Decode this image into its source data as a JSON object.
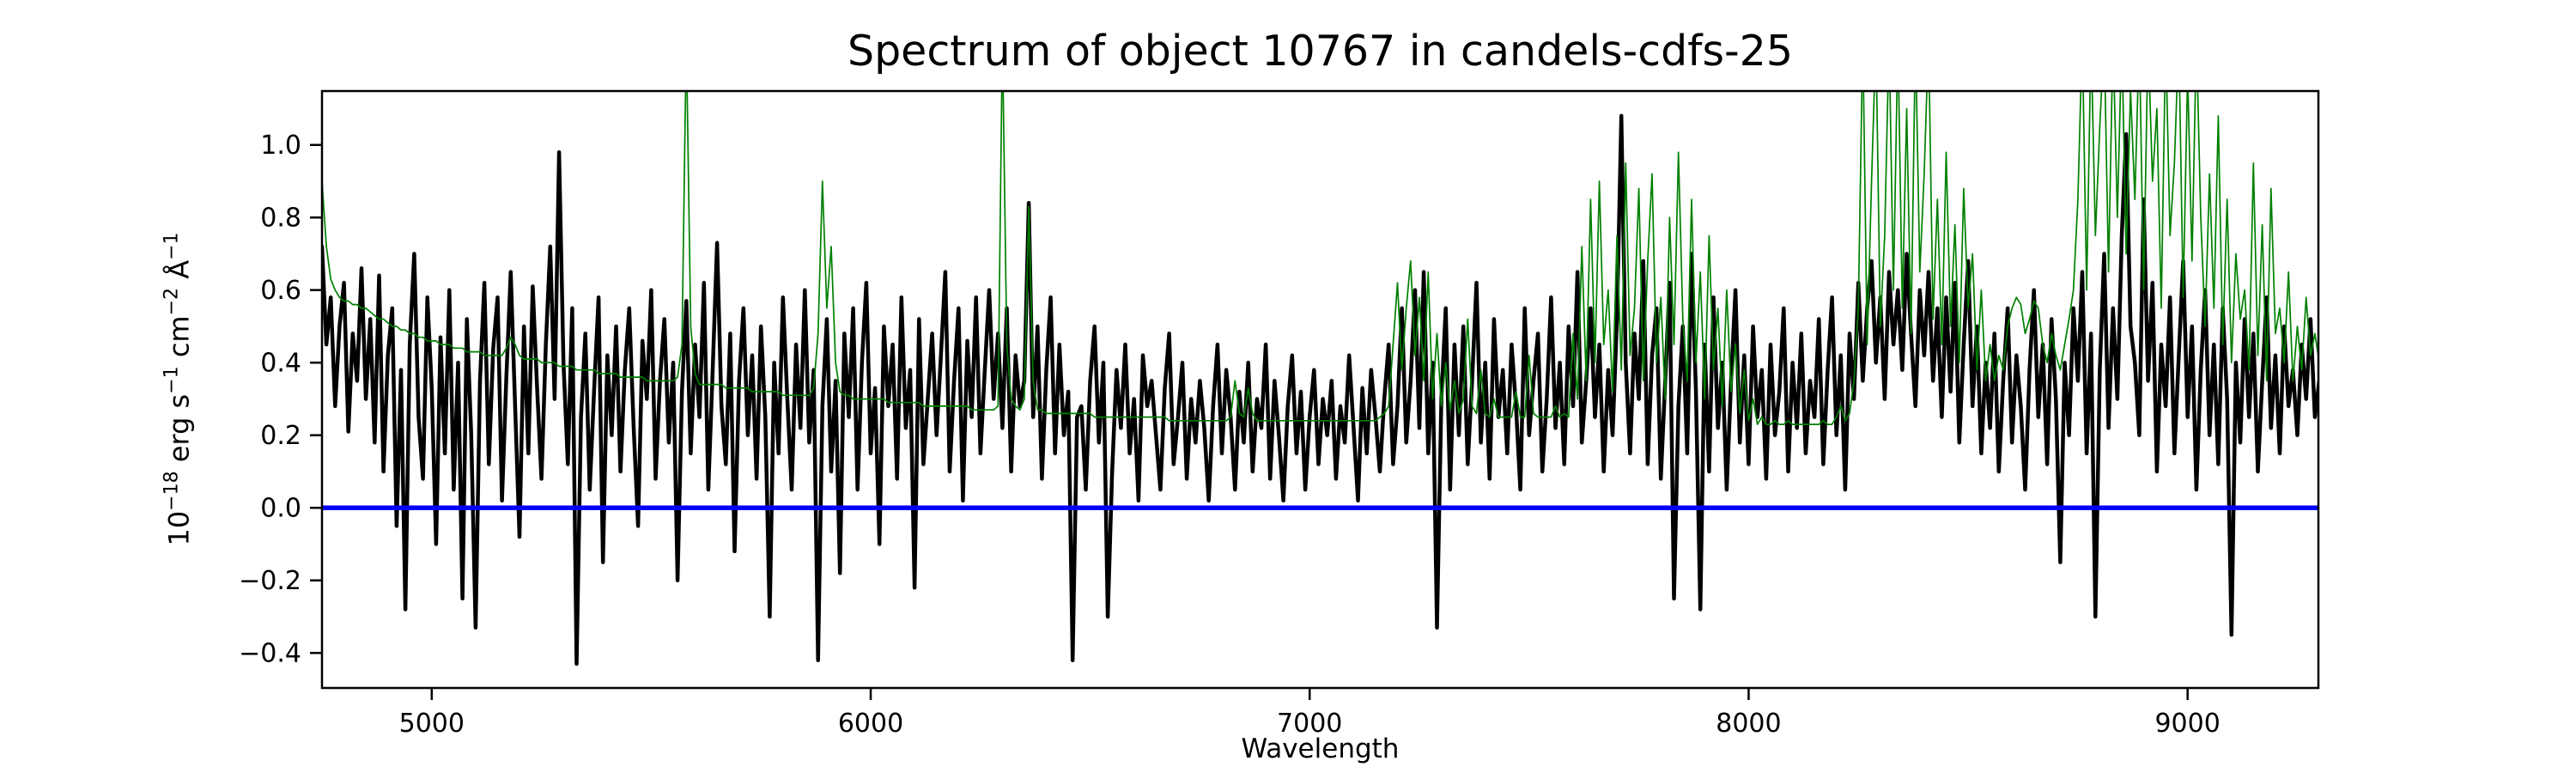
{
  "figure": {
    "title": "Spectrum of object 10767 in candels-cdfs-25",
    "background": "#ffffff"
  },
  "axes": {
    "xlabel": "Wavelength",
    "ylabel_flat": "10^{-18} erg s^{-1} cm^{-2} Å^{-1}",
    "ylabel_parts": [
      {
        "t": "10",
        "sup": false
      },
      {
        "t": "−18",
        "sup": true
      },
      {
        "t": " erg s",
        "sup": false
      },
      {
        "t": "−1",
        "sup": true
      },
      {
        "t": " cm",
        "sup": false
      },
      {
        "t": "−2",
        "sup": true
      },
      {
        "t": " Å",
        "sup": false
      },
      {
        "t": "−1",
        "sup": true
      }
    ],
    "x_ticks": [
      {
        "v": 5000,
        "label": "5000"
      },
      {
        "v": 6000,
        "label": "6000"
      },
      {
        "v": 7000,
        "label": "7000"
      },
      {
        "v": 8000,
        "label": "8000"
      },
      {
        "v": 9000,
        "label": "9000"
      }
    ],
    "y_ticks": [
      {
        "v": 1.0,
        "label": "1.0"
      },
      {
        "v": 0.8,
        "label": "0.8"
      },
      {
        "v": 0.6,
        "label": "0.6"
      },
      {
        "v": 0.4,
        "label": "0.4"
      },
      {
        "v": 0.2,
        "label": "0.2"
      },
      {
        "v": 0.0,
        "label": "0.0"
      },
      {
        "v": -0.2,
        "label": "−0.2"
      },
      {
        "v": -0.4,
        "label": "−0.4"
      }
    ],
    "spine_color": "#000000"
  },
  "chart_data": {
    "type": "line",
    "title": "Spectrum of object 10767 in candels-cdfs-25",
    "xlabel": "Wavelength",
    "ylabel": "10^{-18} erg s^{-1} cm^{-2} Å^{-1}",
    "xlim": [
      4750,
      9298
    ],
    "ylim": [
      -0.4965,
      1.1485
    ],
    "grid": false,
    "legend_position": "none",
    "x_start": 4750,
    "x_step": 10,
    "series": [
      {
        "name": "observed spectrum",
        "color": "#000000",
        "linewidth": 4.5,
        "values": [
          0.72,
          0.45,
          0.58,
          0.28,
          0.5,
          0.62,
          0.21,
          0.48,
          0.35,
          0.66,
          0.3,
          0.52,
          0.18,
          0.64,
          0.1,
          0.42,
          0.55,
          -0.05,
          0.38,
          -0.28,
          0.45,
          0.7,
          0.25,
          0.08,
          0.58,
          0.33,
          -0.1,
          0.47,
          0.15,
          0.6,
          0.05,
          0.4,
          -0.25,
          0.52,
          0.2,
          -0.33,
          0.35,
          0.62,
          0.12,
          0.44,
          0.58,
          0.02,
          0.36,
          0.65,
          0.28,
          -0.08,
          0.5,
          0.15,
          0.61,
          0.33,
          0.08,
          0.45,
          0.72,
          0.3,
          0.98,
          0.4,
          0.12,
          0.55,
          -0.43,
          0.25,
          0.48,
          0.05,
          0.33,
          0.58,
          -0.15,
          0.42,
          0.2,
          0.5,
          0.1,
          0.38,
          0.55,
          0.22,
          -0.05,
          0.46,
          0.3,
          0.6,
          0.08,
          0.35,
          0.52,
          0.18,
          0.4,
          -0.2,
          0.32,
          0.57,
          0.15,
          0.45,
          0.25,
          0.62,
          0.05,
          0.38,
          0.73,
          0.28,
          0.12,
          0.48,
          -0.12,
          0.35,
          0.55,
          0.2,
          0.42,
          0.08,
          0.5,
          0.25,
          -0.3,
          0.4,
          0.15,
          0.58,
          0.3,
          0.05,
          0.45,
          0.22,
          0.6,
          0.18,
          0.38,
          -0.42,
          0.28,
          0.52,
          0.1,
          0.35,
          -0.18,
          0.48,
          0.25,
          0.55,
          0.05,
          0.4,
          0.62,
          0.15,
          0.33,
          -0.1,
          0.5,
          0.28,
          0.45,
          0.08,
          0.58,
          0.22,
          0.38,
          -0.22,
          0.52,
          0.12,
          0.3,
          0.48,
          0.2,
          0.42,
          0.65,
          0.1,
          0.35,
          0.55,
          0.02,
          0.46,
          0.25,
          0.58,
          0.15,
          0.38,
          0.6,
          0.3,
          0.48,
          0.22,
          0.55,
          0.1,
          0.42,
          0.28,
          0.35,
          0.84,
          0.25,
          0.5,
          0.08,
          0.38,
          0.58,
          0.15,
          0.45,
          0.2,
          0.32,
          -0.42,
          0.25,
          0.28,
          0.05,
          0.35,
          0.5,
          0.18,
          0.4,
          -0.3,
          0.1,
          0.38,
          0.22,
          0.45,
          0.15,
          0.3,
          0.02,
          0.42,
          0.28,
          0.35,
          0.2,
          0.05,
          0.33,
          0.48,
          0.12,
          0.25,
          0.4,
          0.08,
          0.3,
          0.18,
          0.35,
          0.22,
          0.02,
          0.28,
          0.45,
          0.15,
          0.38,
          0.25,
          0.05,
          0.32,
          0.18,
          0.4,
          0.1,
          0.3,
          0.22,
          0.45,
          0.08,
          0.35,
          0.2,
          0.02,
          0.28,
          0.42,
          0.15,
          0.32,
          0.05,
          0.25,
          0.38,
          0.12,
          0.3,
          0.2,
          0.35,
          0.08,
          0.28,
          0.18,
          0.42,
          0.22,
          0.02,
          0.33,
          0.15,
          0.38,
          0.25,
          0.1,
          0.3,
          0.45,
          0.12,
          0.28,
          0.55,
          0.18,
          0.35,
          0.6,
          0.22,
          0.65,
          0.15,
          0.4,
          -0.33,
          0.3,
          0.55,
          0.05,
          0.45,
          0.2,
          0.5,
          0.12,
          0.35,
          0.62,
          0.18,
          0.4,
          0.08,
          0.52,
          0.25,
          0.38,
          0.15,
          0.45,
          0.28,
          0.05,
          0.55,
          0.2,
          0.35,
          0.48,
          0.1,
          0.3,
          0.58,
          0.22,
          0.4,
          0.12,
          0.5,
          0.28,
          0.65,
          0.18,
          0.35,
          0.55,
          0.25,
          0.45,
          0.1,
          0.38,
          0.2,
          0.52,
          1.08,
          0.4,
          0.15,
          0.48,
          0.3,
          0.68,
          0.12,
          0.42,
          0.55,
          0.08,
          0.35,
          0.62,
          -0.25,
          0.28,
          0.5,
          0.15,
          0.7,
          0.32,
          -0.28,
          0.45,
          0.1,
          0.58,
          0.22,
          0.4,
          0.05,
          0.35,
          0.6,
          0.18,
          0.42,
          0.12,
          0.5,
          0.25,
          0.38,
          0.08,
          0.45,
          0.2,
          0.32,
          0.55,
          0.1,
          0.4,
          0.22,
          0.48,
          0.15,
          0.35,
          0.25,
          0.52,
          0.12,
          0.38,
          0.58,
          0.2,
          0.42,
          0.05,
          0.48,
          0.3,
          0.62,
          0.35,
          0.55,
          0.68,
          0.4,
          0.58,
          0.3,
          0.65,
          0.45,
          0.6,
          0.38,
          0.7,
          0.48,
          0.28,
          0.6,
          0.42,
          0.65,
          0.35,
          0.55,
          0.25,
          0.58,
          0.32,
          0.62,
          0.18,
          0.45,
          0.68,
          0.28,
          0.5,
          0.15,
          0.4,
          0.22,
          0.48,
          0.1,
          0.35,
          0.55,
          0.18,
          0.42,
          0.28,
          0.05,
          0.38,
          0.6,
          0.25,
          0.45,
          0.12,
          0.52,
          0.3,
          -0.15,
          0.4,
          0.2,
          0.55,
          0.35,
          0.65,
          0.15,
          0.48,
          -0.3,
          0.38,
          0.7,
          0.22,
          0.55,
          0.3,
          0.75,
          1.03,
          0.5,
          0.4,
          0.2,
          0.85,
          0.35,
          0.62,
          0.1,
          0.45,
          0.28,
          0.58,
          0.15,
          0.42,
          0.68,
          0.25,
          0.5,
          0.05,
          0.38,
          0.6,
          0.2,
          0.45,
          0.12,
          0.55,
          0.3,
          -0.35,
          0.4,
          0.18,
          0.52,
          0.25,
          0.48,
          0.1,
          0.35,
          0.58,
          0.22,
          0.42,
          0.15,
          0.5,
          0.28,
          0.38,
          0.2,
          0.45,
          0.3,
          0.52,
          0.25,
          0.35
        ]
      },
      {
        "name": "sky / noise spectrum",
        "color": "#008000",
        "linewidth": 1.7,
        "values": [
          0.9,
          0.72,
          0.63,
          0.6,
          0.58,
          0.57,
          0.57,
          0.56,
          0.56,
          0.55,
          0.55,
          0.54,
          0.53,
          0.52,
          0.52,
          0.51,
          0.5,
          0.5,
          0.49,
          0.49,
          0.48,
          0.48,
          0.47,
          0.47,
          0.46,
          0.46,
          0.46,
          0.45,
          0.45,
          0.45,
          0.44,
          0.44,
          0.44,
          0.43,
          0.43,
          0.43,
          0.43,
          0.42,
          0.42,
          0.42,
          0.42,
          0.42,
          0.44,
          0.47,
          0.45,
          0.42,
          0.41,
          0.41,
          0.41,
          0.41,
          0.4,
          0.4,
          0.4,
          0.4,
          0.39,
          0.39,
          0.39,
          0.39,
          0.38,
          0.38,
          0.38,
          0.38,
          0.38,
          0.37,
          0.37,
          0.37,
          0.37,
          0.37,
          0.36,
          0.36,
          0.36,
          0.36,
          0.36,
          0.36,
          0.35,
          0.35,
          0.35,
          0.35,
          0.35,
          0.35,
          0.35,
          0.36,
          0.45,
          1.3,
          0.5,
          0.37,
          0.34,
          0.34,
          0.34,
          0.34,
          0.34,
          0.34,
          0.33,
          0.33,
          0.33,
          0.33,
          0.33,
          0.33,
          0.32,
          0.32,
          0.32,
          0.32,
          0.32,
          0.32,
          0.32,
          0.31,
          0.31,
          0.31,
          0.31,
          0.31,
          0.31,
          0.31,
          0.33,
          0.48,
          0.9,
          0.55,
          0.72,
          0.4,
          0.32,
          0.31,
          0.31,
          0.3,
          0.3,
          0.3,
          0.3,
          0.3,
          0.3,
          0.3,
          0.3,
          0.29,
          0.29,
          0.29,
          0.29,
          0.29,
          0.29,
          0.29,
          0.29,
          0.28,
          0.28,
          0.28,
          0.28,
          0.28,
          0.28,
          0.28,
          0.28,
          0.28,
          0.28,
          0.28,
          0.27,
          0.27,
          0.27,
          0.27,
          0.27,
          0.27,
          0.28,
          1.3,
          0.45,
          0.3,
          0.28,
          0.27,
          0.3,
          0.83,
          0.35,
          0.27,
          0.27,
          0.26,
          0.26,
          0.26,
          0.26,
          0.26,
          0.26,
          0.26,
          0.26,
          0.26,
          0.26,
          0.26,
          0.25,
          0.25,
          0.25,
          0.25,
          0.25,
          0.25,
          0.25,
          0.25,
          0.25,
          0.25,
          0.25,
          0.25,
          0.25,
          0.25,
          0.25,
          0.25,
          0.25,
          0.24,
          0.24,
          0.24,
          0.24,
          0.24,
          0.24,
          0.24,
          0.24,
          0.24,
          0.24,
          0.24,
          0.24,
          0.24,
          0.24,
          0.25,
          0.35,
          0.26,
          0.25,
          0.33,
          0.26,
          0.24,
          0.24,
          0.24,
          0.24,
          0.24,
          0.24,
          0.24,
          0.24,
          0.24,
          0.24,
          0.24,
          0.24,
          0.24,
          0.24,
          0.24,
          0.24,
          0.24,
          0.24,
          0.24,
          0.24,
          0.24,
          0.24,
          0.24,
          0.24,
          0.24,
          0.24,
          0.24,
          0.24,
          0.25,
          0.26,
          0.28,
          0.45,
          0.62,
          0.38,
          0.55,
          0.68,
          0.42,
          0.58,
          0.35,
          0.65,
          0.3,
          0.48,
          0.28,
          0.4,
          0.27,
          0.35,
          0.26,
          0.3,
          0.52,
          0.28,
          0.26,
          0.38,
          0.26,
          0.25,
          0.3,
          0.25,
          0.25,
          0.25,
          0.25,
          0.32,
          0.25,
          0.25,
          0.42,
          0.26,
          0.25,
          0.25,
          0.25,
          0.25,
          0.28,
          0.25,
          0.26,
          0.25,
          0.48,
          0.3,
          0.72,
          0.35,
          0.85,
          0.4,
          0.9,
          0.45,
          0.6,
          0.32,
          0.75,
          0.38,
          0.95,
          0.42,
          0.55,
          0.88,
          0.35,
          0.68,
          0.92,
          0.4,
          0.58,
          0.3,
          0.8,
          0.45,
          0.98,
          0.52,
          0.35,
          0.85,
          0.4,
          0.65,
          0.3,
          0.75,
          0.38,
          0.55,
          0.28,
          0.6,
          0.32,
          0.45,
          0.26,
          0.38,
          0.24,
          0.3,
          0.23,
          0.25,
          0.23,
          0.23,
          0.24,
          0.23,
          0.23,
          0.24,
          0.23,
          0.23,
          0.23,
          0.23,
          0.23,
          0.23,
          0.23,
          0.24,
          0.23,
          0.23,
          0.25,
          0.28,
          0.24,
          0.26,
          0.35,
          0.55,
          1.3,
          0.45,
          0.9,
          1.3,
          0.5,
          0.75,
          1.3,
          0.6,
          1.3,
          0.55,
          1.1,
          0.48,
          1.3,
          0.65,
          0.92,
          1.3,
          0.52,
          0.85,
          0.45,
          0.98,
          0.5,
          0.78,
          0.4,
          0.88,
          0.55,
          0.7,
          0.38,
          0.6,
          0.35,
          0.45,
          0.35,
          0.42,
          0.38,
          0.5,
          0.55,
          0.58,
          0.56,
          0.48,
          0.52,
          0.57,
          0.55,
          0.45,
          0.4,
          0.48,
          0.42,
          0.38,
          0.45,
          0.52,
          0.6,
          0.85,
          1.3,
          0.6,
          1.3,
          0.75,
          1.05,
          1.3,
          0.65,
          1.3,
          0.8,
          1.3,
          0.7,
          1.15,
          0.85,
          1.3,
          0.6,
          1.3,
          0.9,
          1.1,
          0.55,
          1.3,
          0.75,
          0.95,
          1.3,
          0.58,
          1.2,
          0.68,
          1.3,
          0.8,
          0.5,
          0.92,
          0.55,
          1.08,
          0.45,
          0.85,
          0.4,
          0.7,
          0.52,
          0.6,
          0.38,
          0.95,
          0.42,
          0.78,
          0.35,
          0.88,
          0.48,
          0.55,
          0.4,
          0.65,
          0.35,
          0.5,
          0.38,
          0.58,
          0.42,
          0.48,
          0.4
        ]
      },
      {
        "name": "zero flux line",
        "color": "#0000ff",
        "linewidth": 5.5,
        "constant_y": 0.0
      }
    ]
  }
}
